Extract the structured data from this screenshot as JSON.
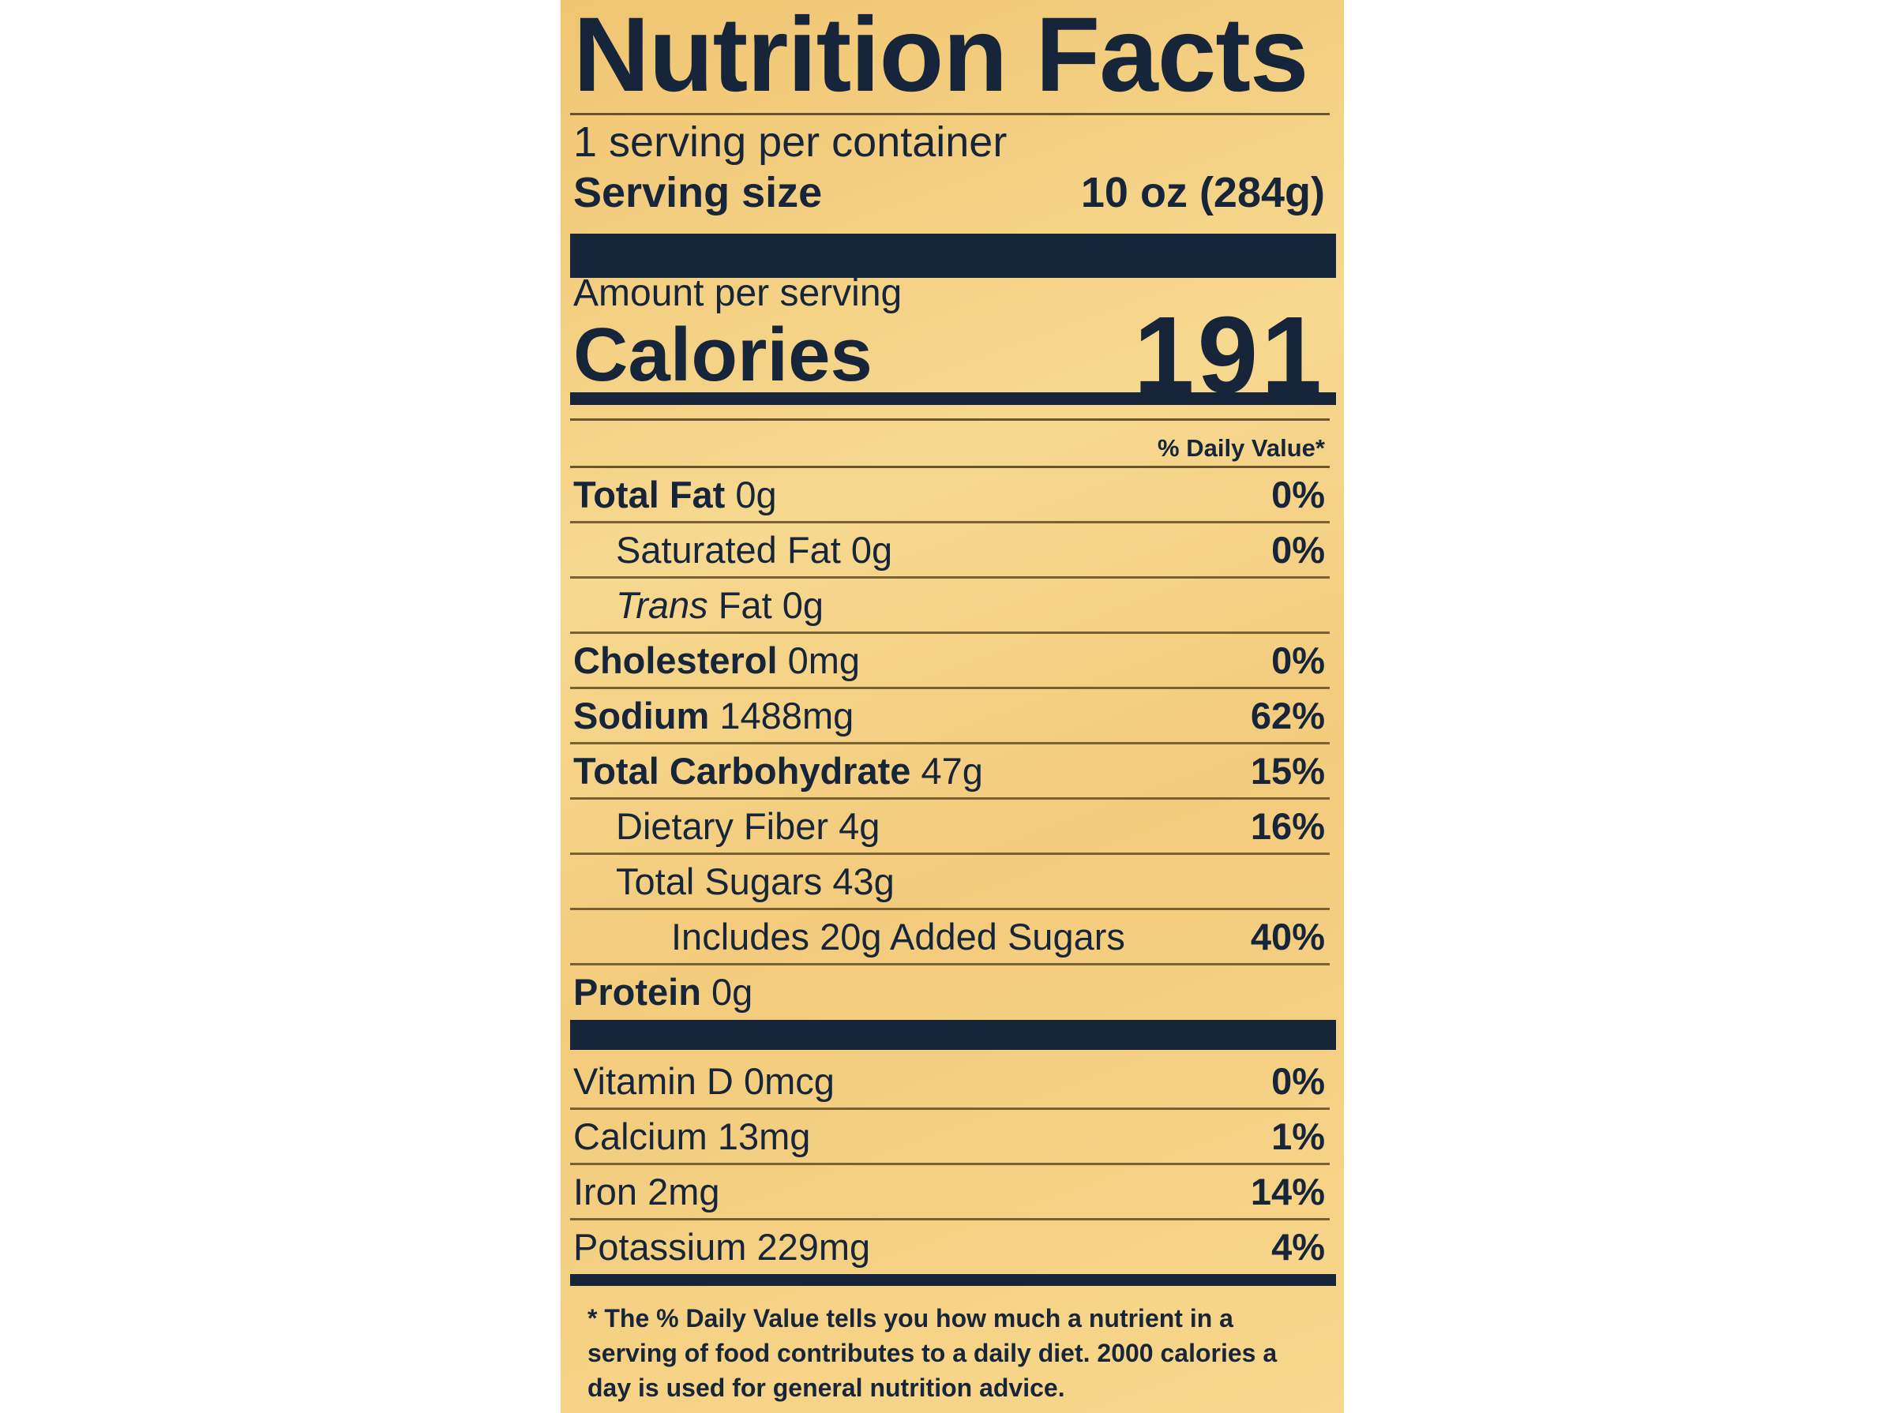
{
  "title": "Nutrition Facts",
  "servings": "1 serving per container",
  "serving_size": {
    "label": "Serving size",
    "value": "10 oz (284g)"
  },
  "amount_per_serving": "Amount per serving",
  "calories": {
    "label": "Calories",
    "value": 191
  },
  "daily_value_header": "% Daily Value*",
  "nutrients": [
    {
      "name": "Total Fat",
      "amount": "0g",
      "dv": "0%"
    },
    {
      "name": "Saturated Fat",
      "amount": "0g",
      "dv": "0%"
    },
    {
      "prefix": "Trans",
      "name": "Fat",
      "amount": "0g"
    },
    {
      "name": "Cholesterol",
      "amount": "0mg",
      "dv": "0%"
    },
    {
      "name": "Sodium",
      "amount": "1488mg",
      "dv": "62%"
    },
    {
      "name": "Total Carbohydrate",
      "amount": "47g",
      "dv": "15%"
    },
    {
      "name": "Dietary Fiber",
      "amount": "4g",
      "dv": "16%"
    },
    {
      "name": "Total Sugars",
      "amount": "43g"
    },
    {
      "name": "Includes 20g Added Sugars",
      "dv": "40%"
    },
    {
      "name": "Protein",
      "amount": "0g"
    }
  ],
  "vitamins": [
    {
      "name": "Vitamin D",
      "amount": "0mcg",
      "dv": "0%"
    },
    {
      "name": "Calcium",
      "amount": "13mg",
      "dv": "1%"
    },
    {
      "name": "Iron",
      "amount": "2mg",
      "dv": "14%"
    },
    {
      "name": "Potassium",
      "amount": "229mg",
      "dv": "4%"
    }
  ],
  "footnote": "* The % Daily Value tells you how much a nutrient in a serving of food contributes to a daily diet. 2000 calories a day is used for general nutrition advice."
}
